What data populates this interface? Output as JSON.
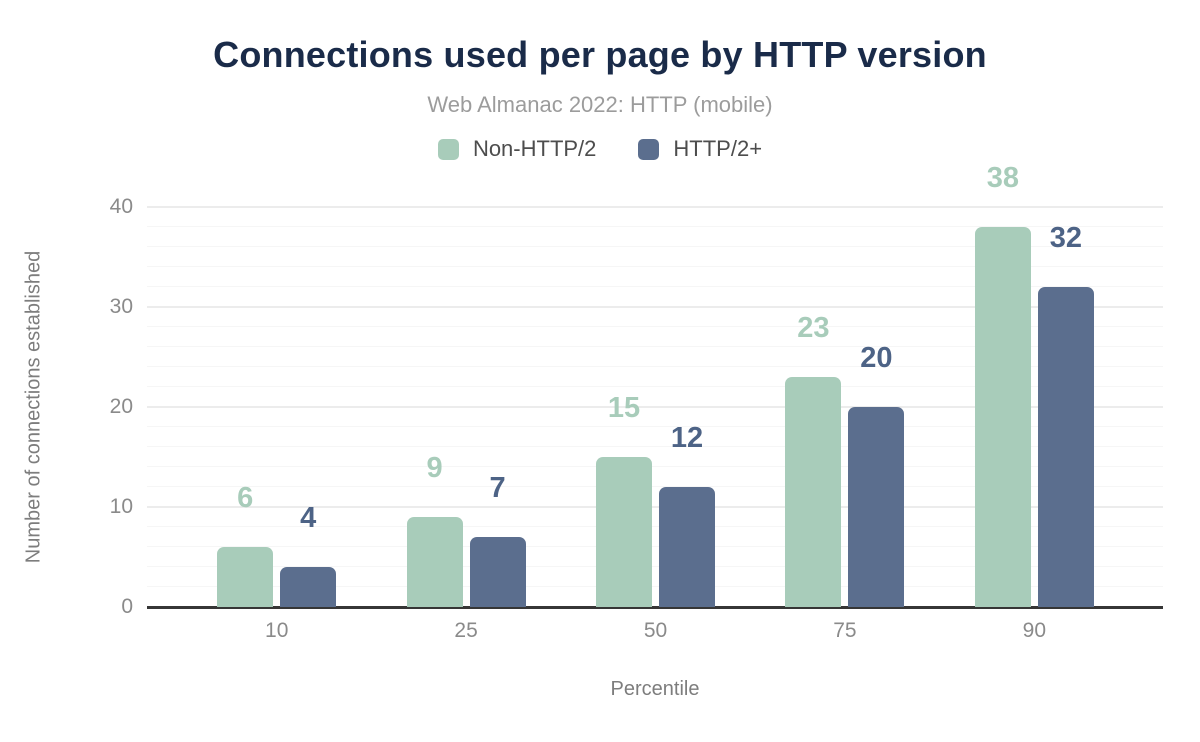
{
  "header": {
    "title": "Connections used per page by HTTP version",
    "subtitle": "Web Almanac 2022: HTTP (mobile)"
  },
  "chart_data": {
    "type": "bar",
    "title": "Connections used per page by HTTP version",
    "subtitle": "Web Almanac 2022: HTTP (mobile)",
    "categories": [
      "10",
      "25",
      "50",
      "75",
      "90"
    ],
    "series": [
      {
        "name": "Non-HTTP/2",
        "color": "#a8ccba",
        "label_color": "#a8ccba",
        "values": [
          6,
          9,
          15,
          23,
          38
        ]
      },
      {
        "name": "HTTP/2+",
        "color": "#5b6e8e",
        "label_color": "#4d6386",
        "values": [
          4,
          7,
          12,
          20,
          32
        ]
      }
    ],
    "xlabel": "Percentile",
    "ylabel": "Number of connections established",
    "ylim": [
      0,
      40
    ],
    "yticks": [
      0,
      10,
      20,
      30,
      40
    ],
    "grid": "horizontal, minor every 2, major every 10",
    "legend_position": "top-center"
  },
  "colors": {
    "title": "#1a2b49",
    "subtitle": "#9c9c9c",
    "axis_text": "#8a8a8a",
    "axis_title": "#7d7d7d",
    "legend_text": "#4d4d4d",
    "axis_line": "#363636",
    "grid_major": "#ececec",
    "grid_minor": "#f6f6f6",
    "background": "#ffffff"
  }
}
